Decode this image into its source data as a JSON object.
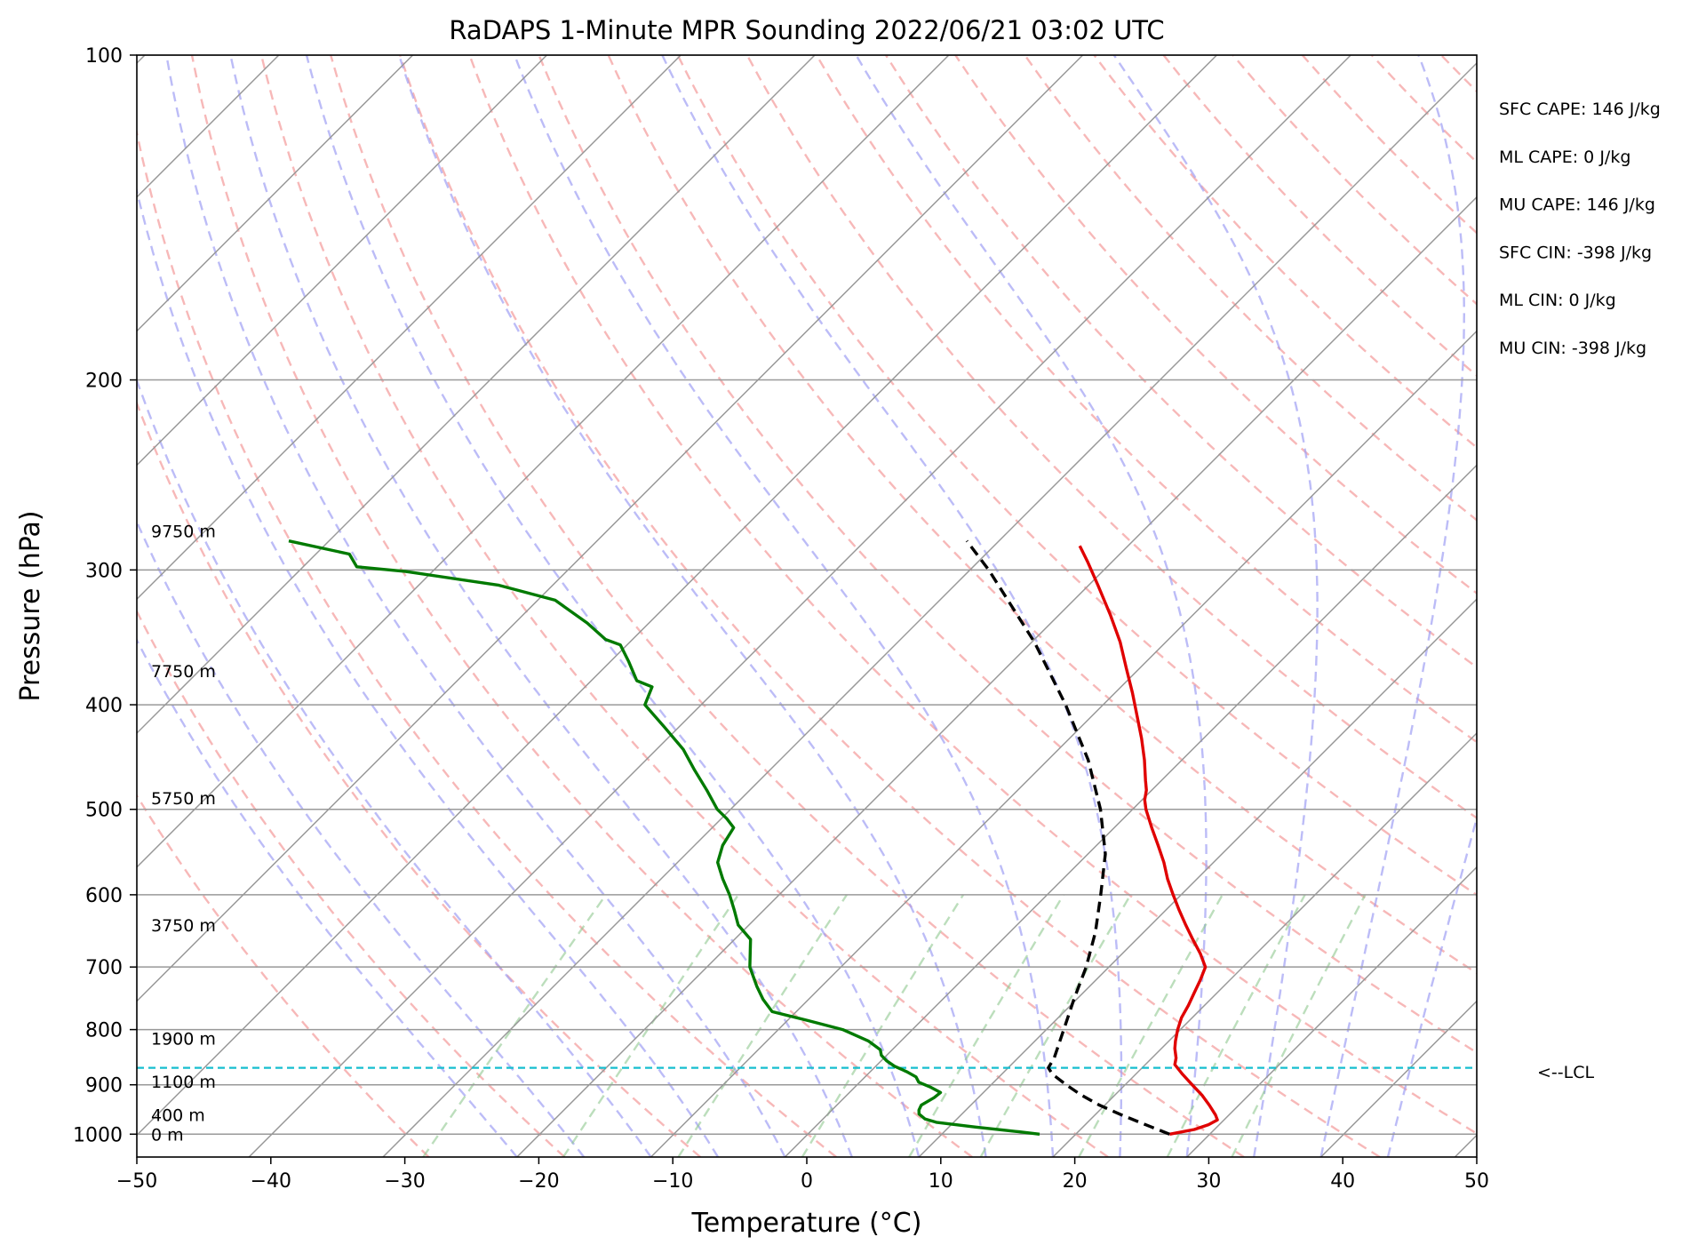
{
  "chart_data": {
    "type": "line",
    "subtype": "skew-t log-p sounding",
    "title": "RaDAPS 1-Minute MPR Sounding 2022/06/21 03:02 UTC",
    "xlabel": "Temperature (°C)",
    "ylabel": "Pressure (hPa)",
    "xlim": [
      -50,
      50
    ],
    "ylim": [
      1050,
      100
    ],
    "y_scale": "log",
    "x_ticks": [
      "−50",
      "−40",
      "−30",
      "−20",
      "−10",
      "0",
      "10",
      "20",
      "30",
      "40",
      "50"
    ],
    "y_ticks": [
      "100",
      "200",
      "300",
      "400",
      "500",
      "600",
      "700",
      "800",
      "900",
      "1000"
    ],
    "grid": true,
    "series": [
      {
        "role": "temperature",
        "color": "#e00000",
        "points": [
          [
            1000,
            27.0
          ],
          [
            990,
            28.5
          ],
          [
            980,
            29.2
          ],
          [
            970,
            29.5
          ],
          [
            960,
            29.0
          ],
          [
            940,
            27.8
          ],
          [
            920,
            26.5
          ],
          [
            900,
            25.0
          ],
          [
            880,
            23.5
          ],
          [
            862,
            22.2
          ],
          [
            850,
            21.8
          ],
          [
            833,
            21.0
          ],
          [
            820,
            20.5
          ],
          [
            800,
            19.8
          ],
          [
            780,
            19.2
          ],
          [
            760,
            18.8
          ],
          [
            740,
            18.3
          ],
          [
            720,
            17.8
          ],
          [
            700,
            17.2
          ],
          [
            680,
            15.8
          ],
          [
            660,
            14.2
          ],
          [
            640,
            12.6
          ],
          [
            620,
            11.0
          ],
          [
            600,
            9.4
          ],
          [
            580,
            7.8
          ],
          [
            560,
            6.3
          ],
          [
            540,
            4.6
          ],
          [
            520,
            2.8
          ],
          [
            500,
            1.0
          ],
          [
            490,
            0.2
          ],
          [
            480,
            -0.4
          ],
          [
            470,
            -1.2
          ],
          [
            450,
            -2.8
          ],
          [
            430,
            -4.6
          ],
          [
            410,
            -6.6
          ],
          [
            390,
            -8.7
          ],
          [
            370,
            -11.0
          ],
          [
            350,
            -13.4
          ],
          [
            330,
            -16.2
          ],
          [
            310,
            -19.3
          ],
          [
            295,
            -21.8
          ],
          [
            285,
            -23.6
          ]
        ]
      },
      {
        "role": "dewpoint",
        "color": "#007a00",
        "points": [
          [
            1000,
            17.3
          ],
          [
            995,
            15.6
          ],
          [
            985,
            12.0
          ],
          [
            975,
            8.7
          ],
          [
            968,
            7.6
          ],
          [
            958,
            6.8
          ],
          [
            950,
            6.5
          ],
          [
            940,
            6.3
          ],
          [
            925,
            6.7
          ],
          [
            915,
            6.8
          ],
          [
            905,
            5.7
          ],
          [
            895,
            4.4
          ],
          [
            885,
            3.8
          ],
          [
            875,
            2.7
          ],
          [
            865,
            1.4
          ],
          [
            855,
            0.4
          ],
          [
            845,
            -0.4
          ],
          [
            835,
            -0.9
          ],
          [
            820,
            -2.4
          ],
          [
            800,
            -5.2
          ],
          [
            785,
            -8.4
          ],
          [
            770,
            -11.8
          ],
          [
            750,
            -13.4
          ],
          [
            730,
            -14.8
          ],
          [
            700,
            -16.8
          ],
          [
            660,
            -18.8
          ],
          [
            640,
            -20.8
          ],
          [
            620,
            -22.2
          ],
          [
            600,
            -23.7
          ],
          [
            580,
            -25.4
          ],
          [
            560,
            -27.0
          ],
          [
            540,
            -27.9
          ],
          [
            520,
            -28.4
          ],
          [
            510,
            -29.6
          ],
          [
            500,
            -31.0
          ],
          [
            480,
            -33.2
          ],
          [
            460,
            -35.6
          ],
          [
            440,
            -38.0
          ],
          [
            420,
            -41.0
          ],
          [
            400,
            -44.2
          ],
          [
            385,
            -45.0
          ],
          [
            380,
            -46.6
          ],
          [
            365,
            -48.6
          ],
          [
            352,
            -50.5
          ],
          [
            348,
            -52.0
          ],
          [
            336,
            -54.6
          ],
          [
            320,
            -58.7
          ],
          [
            310,
            -64.0
          ],
          [
            301,
            -72.0
          ],
          [
            298,
            -76.0
          ],
          [
            290,
            -77.5
          ],
          [
            282,
            -83.0
          ]
        ]
      },
      {
        "role": "parcel profile",
        "color": "#000000",
        "style": "dashed",
        "points": [
          [
            1000,
            27.0
          ],
          [
            980,
            24.5
          ],
          [
            960,
            22.0
          ],
          [
            940,
            19.6
          ],
          [
            920,
            17.5
          ],
          [
            900,
            15.6
          ],
          [
            880,
            13.8
          ],
          [
            868,
            13.0
          ],
          [
            850,
            12.7
          ],
          [
            800,
            11.3
          ],
          [
            750,
            9.8
          ],
          [
            700,
            8.3
          ],
          [
            650,
            6.4
          ],
          [
            600,
            4.0
          ],
          [
            550,
            1.3
          ],
          [
            500,
            -2.4
          ],
          [
            450,
            -7.0
          ],
          [
            400,
            -12.8
          ],
          [
            350,
            -19.8
          ],
          [
            300,
            -28.6
          ],
          [
            282,
            -32.4
          ]
        ]
      }
    ],
    "height_labels": [
      {
        "p": 1000,
        "text": "0 m"
      },
      {
        "p": 960,
        "text": "400 m"
      },
      {
        "p": 894,
        "text": "1100 m"
      },
      {
        "p": 815,
        "text": "1900 m"
      },
      {
        "p": 640,
        "text": "3750 m"
      },
      {
        "p": 488,
        "text": "5750 m"
      },
      {
        "p": 372,
        "text": "7750 m"
      },
      {
        "p": 276,
        "text": "9750 m"
      }
    ],
    "lcl": {
      "p": 868,
      "label": "<--LCL"
    },
    "stats": [
      "SFC CAPE: 146 J/kg",
      "ML CAPE: 0 J/kg",
      "MU CAPE: 146 J/kg",
      "SFC CIN: -398 J/kg",
      "ML CIN: 0 J/kg",
      "MU CIN: -398 J/kg"
    ],
    "background_lines": {
      "dry_adiabats_color": "#f4a0a0",
      "moist_adiabats_color": "#a0a0f4",
      "mixing_ratio_color": "#90c890",
      "isotherm_color": "#999999"
    }
  }
}
